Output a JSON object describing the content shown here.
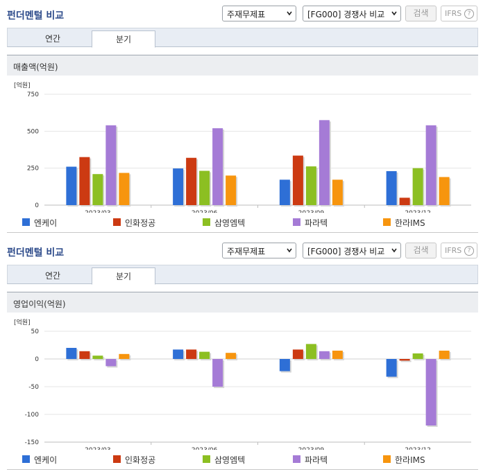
{
  "panels": [
    {
      "title": "펀더멘털 비교",
      "select1": "주재무제표",
      "select2": "[FG000] 경쟁사 비교",
      "search_label": "검색",
      "ifrs_label": "IFRS",
      "help_glyph": "?",
      "tabs": [
        {
          "label": "연간",
          "active": false
        },
        {
          "label": "분기",
          "active": true
        }
      ],
      "section_title": "매출액(억원)",
      "chart_data": {
        "type": "bar",
        "unit_label": "[억원]",
        "categories": [
          "2023/03",
          "2023/06",
          "2023/09",
          "2023/12"
        ],
        "ylim": [
          0,
          750
        ],
        "yticks": [
          0,
          250,
          500,
          750
        ],
        "grid": true,
        "legend_position": "bottom",
        "series": [
          {
            "name": "엔케이",
            "color": "#2e6fd6",
            "values": [
              260,
              248,
              172,
              230
            ]
          },
          {
            "name": "인화정공",
            "color": "#cc3a12",
            "values": [
              325,
              320,
              335,
              50
            ]
          },
          {
            "name": "삼영엠텍",
            "color": "#8cbf22",
            "values": [
              210,
              232,
              262,
              250
            ]
          },
          {
            "name": "파라텍",
            "color": "#a57bd6",
            "values": [
              540,
              520,
              575,
              540
            ]
          },
          {
            "name": "한라IMS",
            "color": "#f7950e",
            "values": [
              218,
              200,
              172,
              190
            ]
          }
        ]
      }
    },
    {
      "title": "펀더멘털 비교",
      "select1": "주재무제표",
      "select2": "[FG000] 경쟁사 비교",
      "search_label": "검색",
      "ifrs_label": "IFRS",
      "help_glyph": "?",
      "tabs": [
        {
          "label": "연간",
          "active": false
        },
        {
          "label": "분기",
          "active": true
        }
      ],
      "section_title": "영업이익(억원)",
      "chart_data": {
        "type": "bar",
        "unit_label": "[억원]",
        "categories": [
          "2023/03",
          "2023/06",
          "2023/09",
          "2023/12"
        ],
        "ylim": [
          -150,
          50
        ],
        "yticks": [
          -150,
          -100,
          -50,
          0,
          50
        ],
        "grid": true,
        "legend_position": "bottom",
        "series": [
          {
            "name": "엔케이",
            "color": "#2e6fd6",
            "values": [
              20,
              17,
              -22,
              -32
            ]
          },
          {
            "name": "인화정공",
            "color": "#cc3a12",
            "values": [
              14,
              17,
              17,
              -3
            ]
          },
          {
            "name": "삼영엠텍",
            "color": "#8cbf22",
            "values": [
              6,
              13,
              27,
              10
            ]
          },
          {
            "name": "파라텍",
            "color": "#a57bd6",
            "values": [
              -13,
              -50,
              14,
              -120
            ]
          },
          {
            "name": "한라IMS",
            "color": "#f7950e",
            "values": [
              9,
              11,
              15,
              15
            ]
          }
        ]
      }
    }
  ]
}
